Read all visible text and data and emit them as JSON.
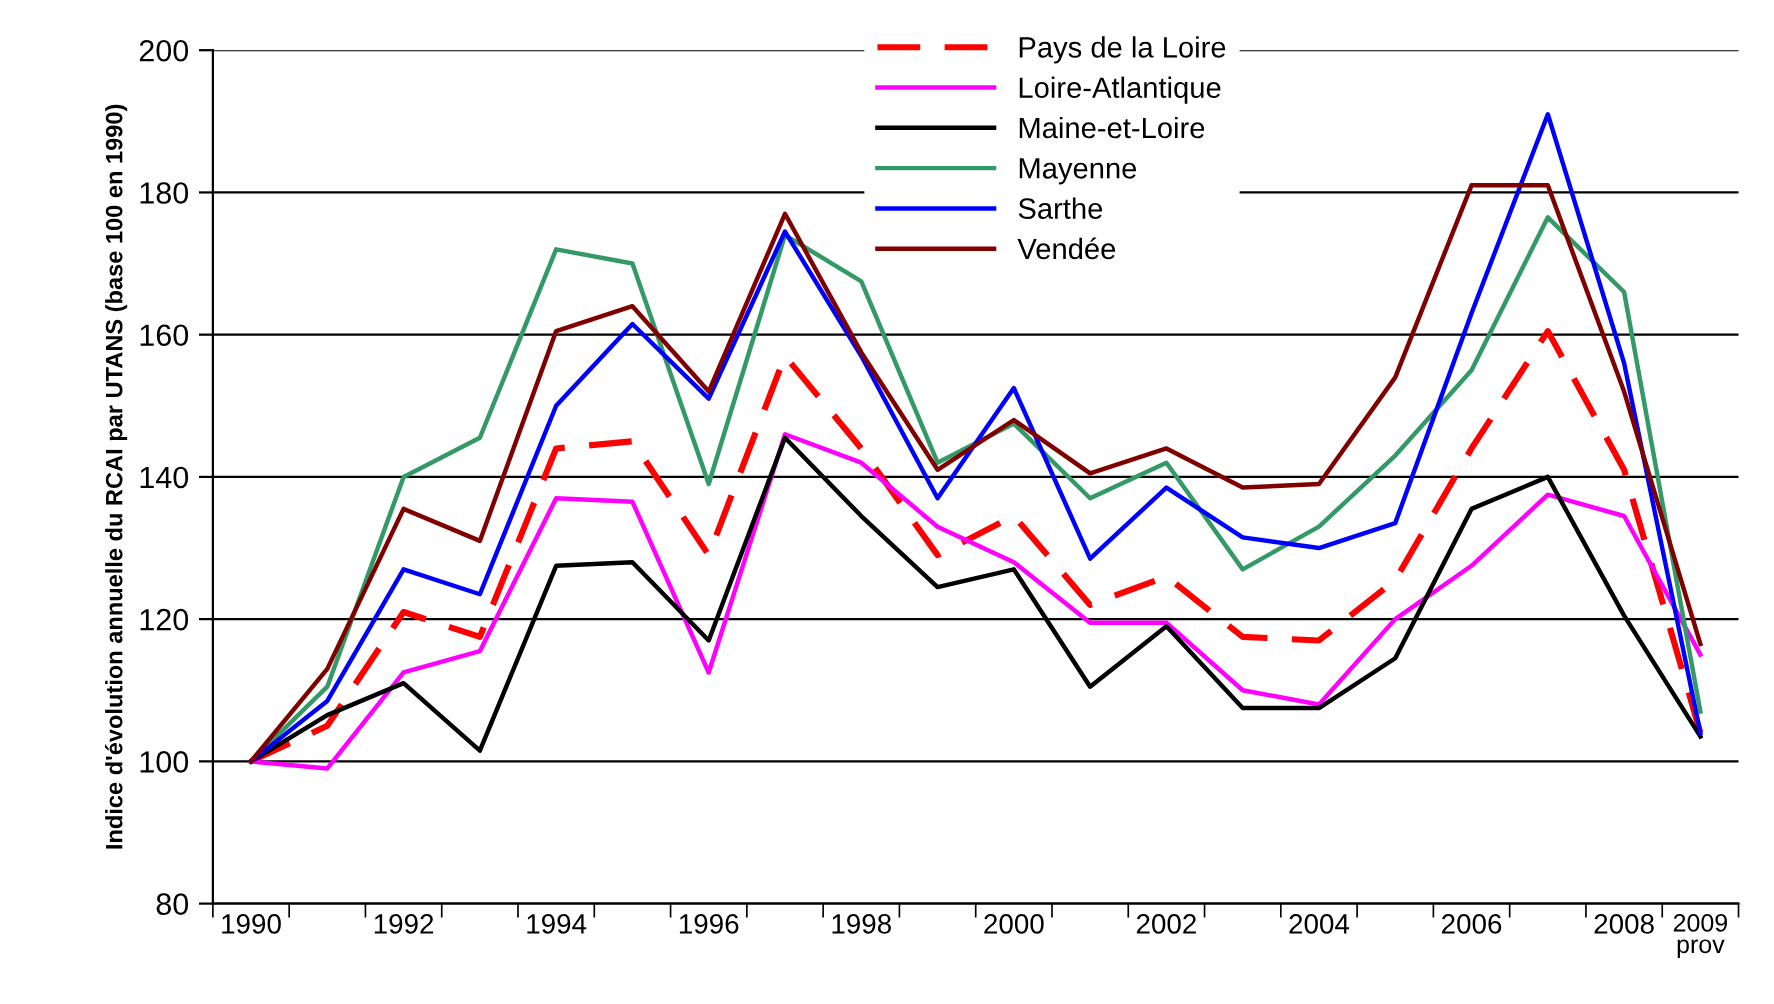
{
  "chart_data": {
    "type": "line",
    "ylabel": "Indice d'évolution annuelle du RCAI par UTANS (base 100 en 1990)",
    "categories": [
      "1990",
      null,
      "1992",
      null,
      "1994",
      null,
      "1996",
      null,
      "1998",
      null,
      "2000",
      null,
      "2002",
      null,
      "2004",
      null,
      "2006",
      null,
      "2008",
      "2009\nprov"
    ],
    "series": [
      {
        "name": "Pays de la Loire",
        "color": "#ff0000",
        "line_style": "dashed",
        "values": [
          100,
          105,
          121,
          117.5,
          144,
          145,
          129,
          157,
          144,
          129,
          134.5,
          122,
          126,
          117.5,
          117,
          125.5,
          144,
          160.5,
          141,
          104
        ]
      },
      {
        "name": "Loire-Atlantique",
        "color": "#ff00ff",
        "line_style": "solid",
        "values": [
          100,
          99,
          112.5,
          115.5,
          137,
          136.5,
          112.5,
          146,
          142,
          133,
          128,
          119.5,
          119.5,
          110,
          108,
          120,
          127.5,
          137.5,
          134.5,
          115
        ]
      },
      {
        "name": "Maine-et-Loire",
        "color": "#000000",
        "line_style": "solid",
        "values": [
          100,
          106.5,
          111,
          101.5,
          127.5,
          128,
          117,
          145.5,
          134.5,
          124.5,
          127,
          110.5,
          119,
          107.5,
          107.5,
          114.5,
          135.5,
          140,
          120.5,
          103.5
        ]
      },
      {
        "name": "Mayenne",
        "color": "#339966",
        "line_style": "solid",
        "values": [
          100,
          110.5,
          140,
          145.5,
          172,
          170,
          139,
          174,
          167.5,
          142,
          147.5,
          137,
          142,
          127,
          133,
          143,
          155,
          176.5,
          166,
          107
        ]
      },
      {
        "name": "Sarthe",
        "color": "#0000ff",
        "line_style": "solid",
        "values": [
          100,
          108.5,
          127,
          123.5,
          150,
          161.5,
          151,
          174.5,
          157,
          137,
          152.5,
          128.5,
          138.5,
          131.5,
          130,
          133.5,
          163,
          191,
          156,
          104
        ]
      },
      {
        "name": "Vendée",
        "color": "#800000",
        "line_style": "solid",
        "values": [
          100,
          113,
          135.5,
          131,
          160.5,
          164,
          152,
          177,
          157.5,
          141,
          148,
          140.5,
          144,
          138.5,
          139,
          154,
          181,
          181,
          152,
          116.5
        ]
      }
    ],
    "ylim": [
      80,
      200
    ],
    "yticks": [
      80,
      100,
      120,
      140,
      160,
      180,
      200
    ],
    "grid": "y",
    "legend": "top",
    "marker": "none"
  }
}
